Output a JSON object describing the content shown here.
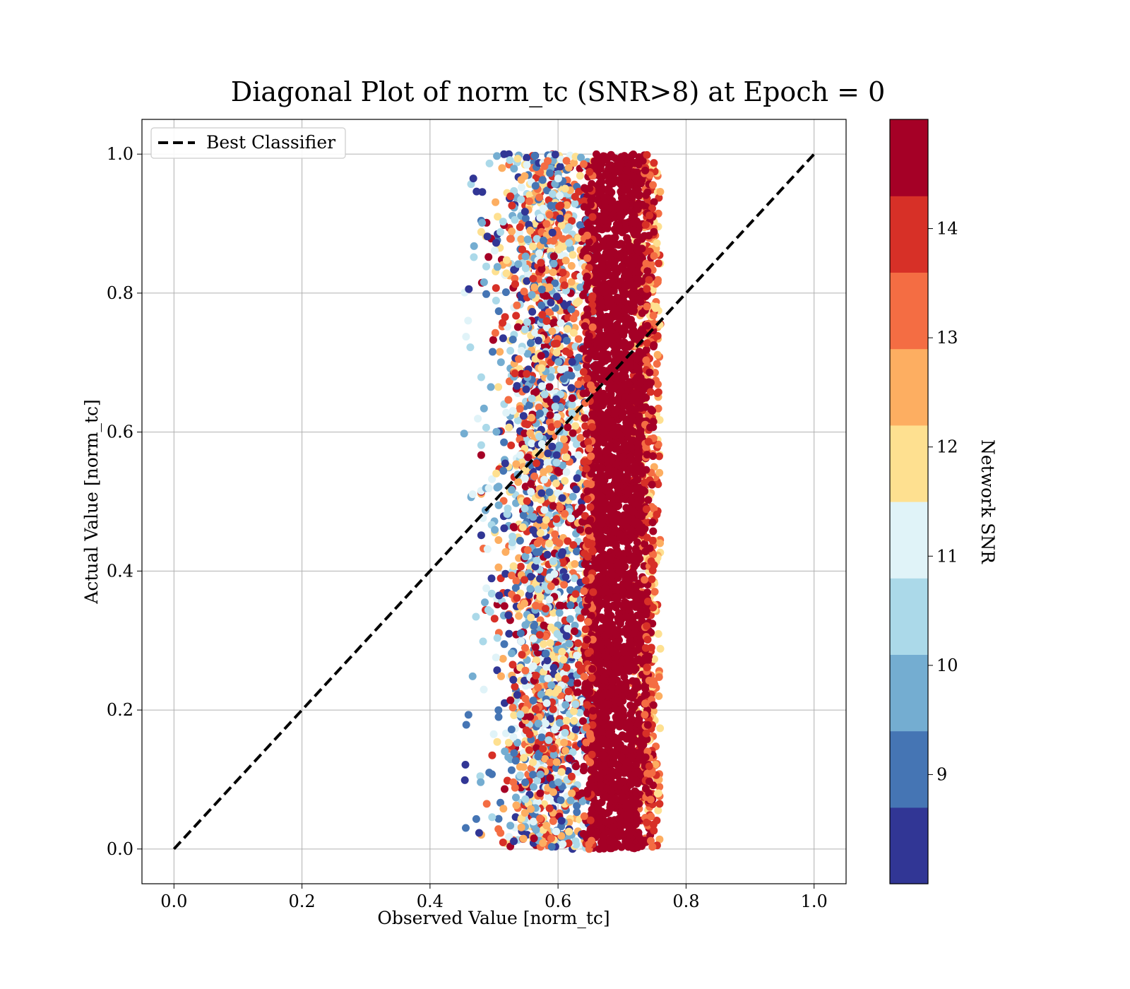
{
  "chart_data": {
    "type": "scatter",
    "title": "Diagonal Plot of norm_tc (SNR>8) at Epoch = 0",
    "xlabel": "Observed Value [norm_tc]",
    "ylabel": "Actual Value [norm_tc]",
    "xlim": [
      -0.05,
      1.05
    ],
    "ylim": [
      -0.05,
      1.05
    ],
    "xticks": [
      "0.0",
      "0.2",
      "0.4",
      "0.6",
      "0.8",
      "1.0"
    ],
    "yticks": [
      "0.0",
      "0.2",
      "0.4",
      "0.6",
      "0.8",
      "1.0"
    ],
    "grid": true,
    "legend": {
      "placement": "top-left",
      "entries": [
        "Best Classifier"
      ]
    },
    "reference_line": {
      "name": "Best Classifier",
      "style": "dashed",
      "color": "#000000",
      "x": [
        0.0,
        1.0
      ],
      "y": [
        0.0,
        1.0
      ]
    },
    "scatter": {
      "x_range": [
        0.45,
        0.77
      ],
      "y_range": [
        0.0,
        1.0
      ],
      "high_snr_band_x": [
        0.65,
        0.73
      ],
      "color_by": "Network SNR"
    },
    "colorbar": {
      "label": "Network SNR",
      "range": [
        8.0,
        15.0
      ],
      "ticks": [
        "9",
        "10",
        "11",
        "12",
        "13",
        "14"
      ],
      "colors": [
        "#313695",
        "#4575b4",
        "#74add1",
        "#abd9e9",
        "#e0f3f8",
        "#fee090",
        "#fdae61",
        "#f46d43",
        "#d73027",
        "#a50026"
      ]
    }
  }
}
